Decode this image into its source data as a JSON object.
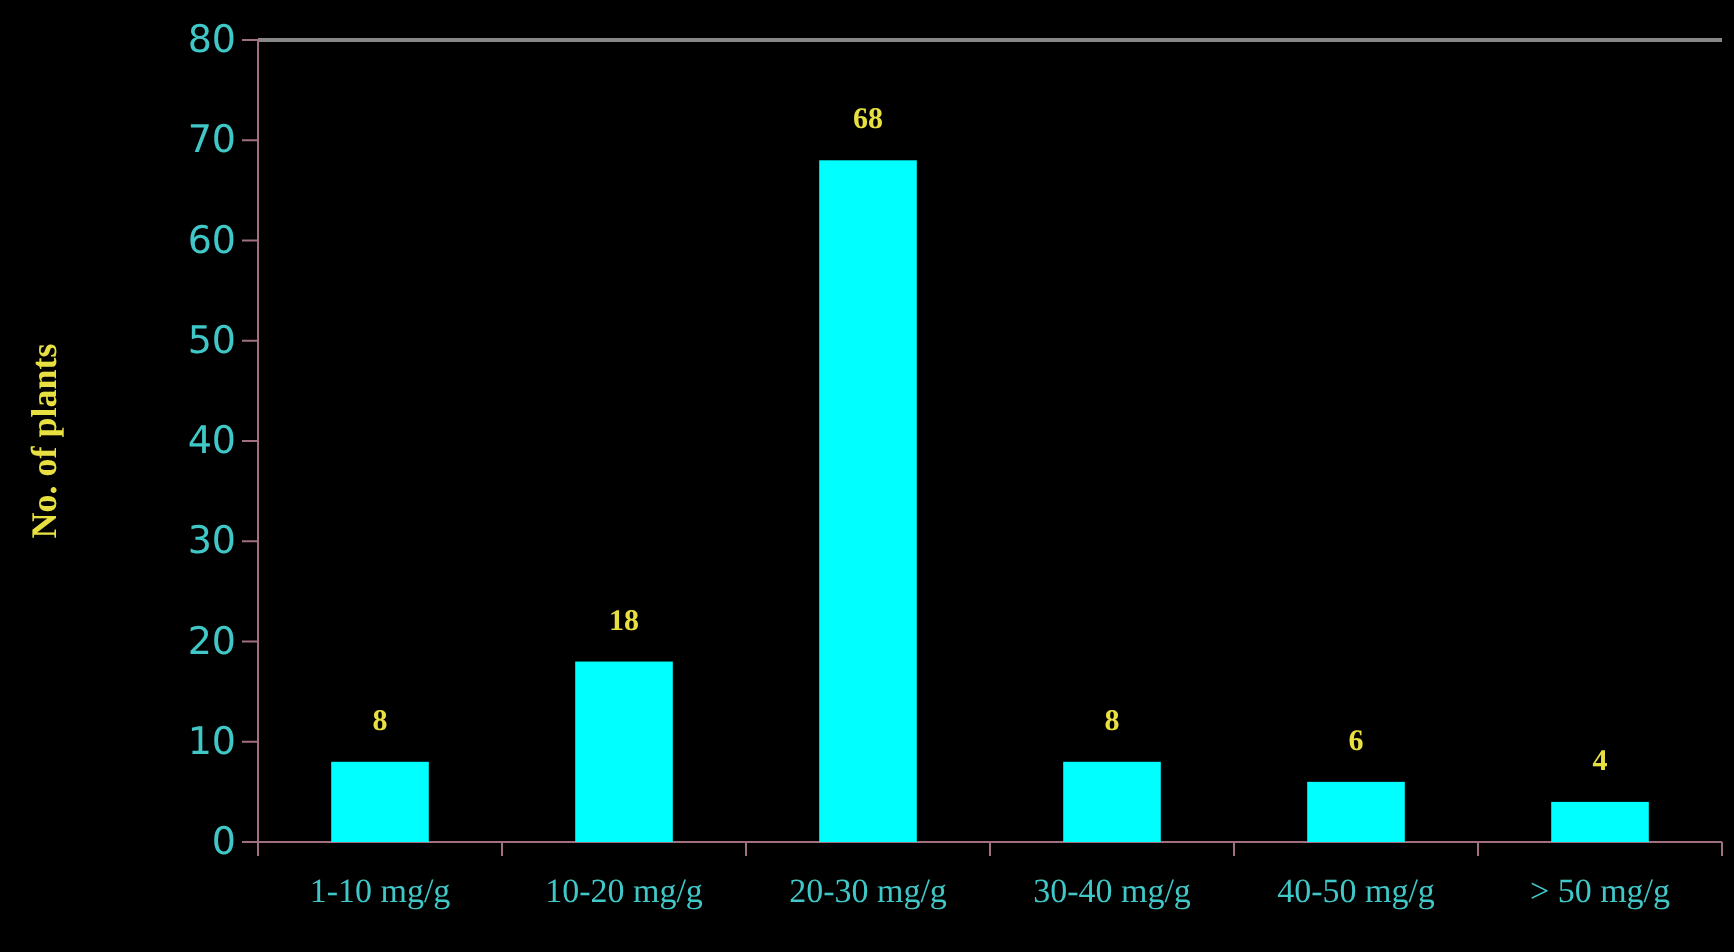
{
  "chart_data": {
    "type": "bar",
    "ylabel": "No. of plants",
    "categories": [
      "1-10 mg/g",
      "10-20 mg/g",
      "20-30 mg/g",
      "30-40 mg/g",
      "40-50 mg/g",
      "> 50 mg/g"
    ],
    "values": [
      8,
      18,
      68,
      8,
      6,
      4
    ],
    "color": "#00ffff",
    "ylim": [
      0,
      80
    ],
    "yticks": [
      0,
      10,
      20,
      30,
      40,
      50,
      60,
      70,
      80
    ],
    "data_labels": true,
    "grid": false,
    "legend": false
  }
}
